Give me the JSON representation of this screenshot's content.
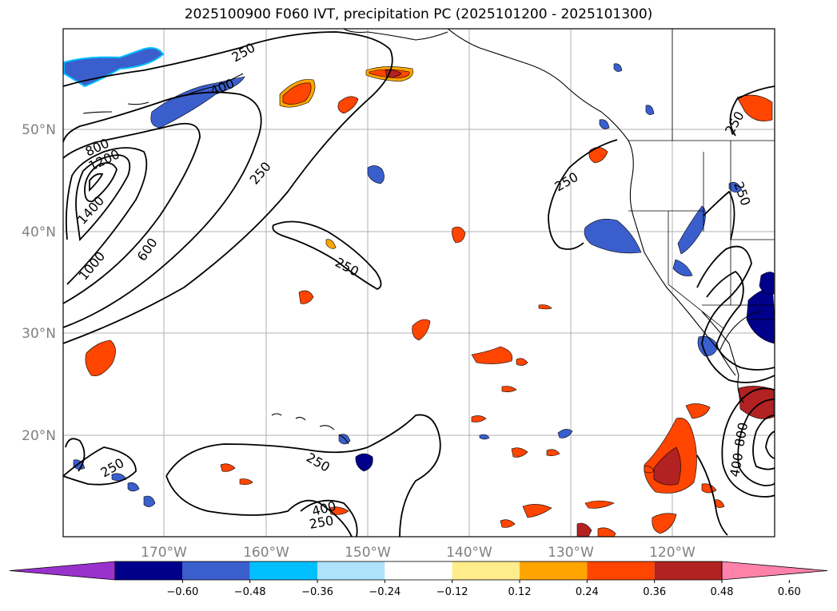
{
  "title": "2025100900 F060 IVT, precipitation PC (2025101200 - 2025101300)",
  "lat_labels": [
    "50°N",
    "40°N",
    "30°N",
    "20°N"
  ],
  "lon_labels": [
    "170°W",
    "160°W",
    "150°W",
    "140°W",
    "130°W",
    "120°W"
  ],
  "ivt_contour_labels": [
    "250",
    "400",
    "800",
    "1200",
    "1400",
    "1000",
    "600",
    "250",
    "250",
    "250",
    "250",
    "250",
    "250",
    "400",
    "250",
    "250",
    "800",
    "400"
  ],
  "colorbar": {
    "ticks": [
      "−0.60",
      "−0.48",
      "−0.36",
      "−0.24",
      "−0.12",
      "0.12",
      "0.24",
      "0.36",
      "0.48",
      "0.60"
    ],
    "colors": [
      "#9932cc",
      "#00008b",
      "#3a5fcd",
      "#00bfff",
      "#afe2fb",
      "#ffffff",
      "#ffec8b",
      "#ffa500",
      "#ff4500",
      "#b22222",
      "#ff82ab"
    ]
  },
  "palette": {
    "neg_strong": "#00008b",
    "neg_mid": "#3a5fcd",
    "neg_light": "#00bfff",
    "neg_pale": "#afe2fb",
    "pos_pale": "#ffec8b",
    "pos_light": "#ffa500",
    "pos_mid": "#ff4500",
    "pos_strong": "#b22222"
  }
}
